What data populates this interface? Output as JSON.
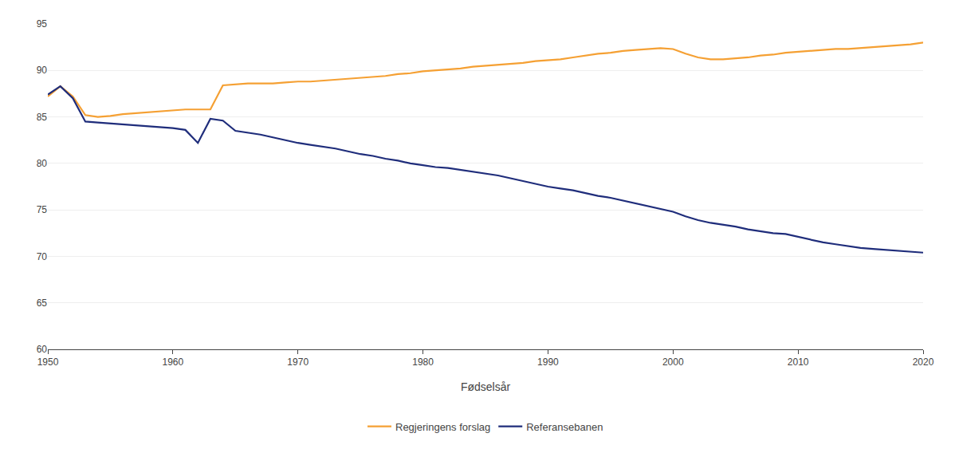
{
  "chart_data": {
    "type": "line",
    "xlabel": "Fødselsår",
    "x": [
      1950,
      1951,
      1952,
      1953,
      1954,
      1955,
      1956,
      1957,
      1958,
      1959,
      1960,
      1961,
      1962,
      1963,
      1964,
      1965,
      1966,
      1967,
      1968,
      1969,
      1970,
      1971,
      1972,
      1973,
      1974,
      1975,
      1976,
      1977,
      1978,
      1979,
      1980,
      1981,
      1982,
      1983,
      1984,
      1985,
      1986,
      1987,
      1988,
      1989,
      1990,
      1991,
      1992,
      1993,
      1994,
      1995,
      1996,
      1997,
      1998,
      1999,
      2000,
      2001,
      2002,
      2003,
      2004,
      2005,
      2006,
      2007,
      2008,
      2009,
      2010,
      2011,
      2012,
      2013,
      2014,
      2015,
      2016,
      2017,
      2018,
      2019,
      2020
    ],
    "series": [
      {
        "name": "Regjeringens forslag",
        "color": "#F5A033",
        "values": [
          87.2,
          88.3,
          87.2,
          85.2,
          85.0,
          85.1,
          85.3,
          85.4,
          85.5,
          85.6,
          85.7,
          85.8,
          85.8,
          85.8,
          88.4,
          88.5,
          88.6,
          88.6,
          88.6,
          88.7,
          88.8,
          88.8,
          88.9,
          89.0,
          89.1,
          89.2,
          89.3,
          89.4,
          89.6,
          89.7,
          89.9,
          90.0,
          90.1,
          90.2,
          90.4,
          90.5,
          90.6,
          90.7,
          90.8,
          91.0,
          91.1,
          91.2,
          91.4,
          91.6,
          91.8,
          91.9,
          92.1,
          92.2,
          92.3,
          92.4,
          92.3,
          91.8,
          91.4,
          91.2,
          91.2,
          91.3,
          91.4,
          91.6,
          91.7,
          91.9,
          92.0,
          92.1,
          92.2,
          92.3,
          92.3,
          92.4,
          92.5,
          92.6,
          92.7,
          92.8,
          93.0
        ]
      },
      {
        "name": "Referansebanen",
        "color": "#1F2D7B",
        "values": [
          87.4,
          88.3,
          87.0,
          84.5,
          84.4,
          84.3,
          84.2,
          84.1,
          84.0,
          83.9,
          83.8,
          83.6,
          82.2,
          84.8,
          84.6,
          83.5,
          83.3,
          83.1,
          82.8,
          82.5,
          82.2,
          82.0,
          81.8,
          81.6,
          81.3,
          81.0,
          80.8,
          80.5,
          80.3,
          80.0,
          79.8,
          79.6,
          79.5,
          79.3,
          79.1,
          78.9,
          78.7,
          78.4,
          78.1,
          77.8,
          77.5,
          77.3,
          77.1,
          76.8,
          76.5,
          76.3,
          76.0,
          75.7,
          75.4,
          75.1,
          74.8,
          74.3,
          73.9,
          73.6,
          73.4,
          73.2,
          72.9,
          72.7,
          72.5,
          72.4,
          72.1,
          71.8,
          71.5,
          71.3,
          71.1,
          70.9,
          70.8,
          70.7,
          70.6,
          70.5,
          70.4
        ]
      }
    ],
    "xlim": [
      1950,
      2020
    ],
    "ylim": [
      60,
      95
    ],
    "xticks": [
      1950,
      1960,
      1970,
      1980,
      1990,
      2000,
      2010,
      2020
    ],
    "yticks": [
      60,
      65,
      70,
      75,
      80,
      85,
      90,
      95
    ],
    "grid": "y",
    "legend": "bottom"
  }
}
